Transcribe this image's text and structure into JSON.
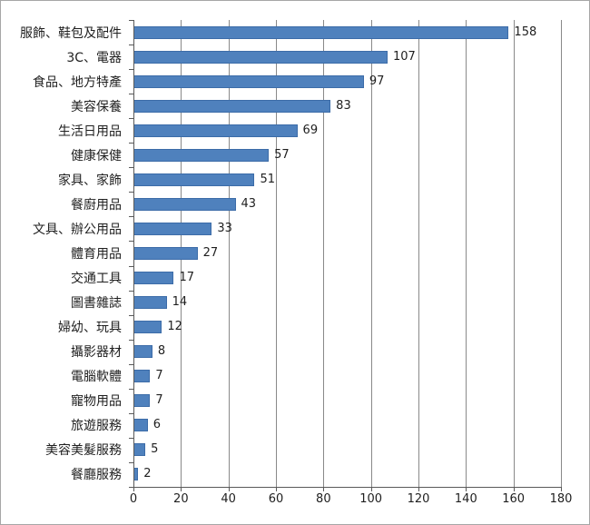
{
  "chart_data": {
    "type": "bar",
    "orientation": "horizontal",
    "title": "",
    "categories": [
      "服飾、鞋包及配件",
      "3C、電器",
      "食品、地方特產",
      "美容保養",
      "生活日用品",
      "健康保健",
      "家具、家飾",
      "餐廚用品",
      "文具、辦公用品",
      "體育用品",
      "交通工具",
      "圖書雜誌",
      "婦幼、玩具",
      "攝影器材",
      "電腦軟體",
      "寵物用品",
      "旅遊服務",
      "美容美髮服務",
      "餐廳服務"
    ],
    "values": [
      158,
      107,
      97,
      83,
      69,
      57,
      51,
      43,
      33,
      27,
      17,
      14,
      12,
      8,
      7,
      7,
      6,
      5,
      2
    ],
    "data_labels": [
      "158",
      "107",
      "97",
      "83",
      "69",
      "57",
      "51",
      "43",
      "33",
      "27",
      "17",
      "14",
      "12",
      "8",
      "7",
      "7",
      "6",
      "5",
      "2"
    ],
    "xlabel": "",
    "ylabel": "",
    "xlim": [
      0,
      180
    ],
    "x_ticks": [
      0,
      20,
      40,
      60,
      80,
      100,
      120,
      140,
      160,
      180
    ],
    "grid": "vertical",
    "legend": "none",
    "colors": {
      "bar_fill": "#4f81bd",
      "bar_border": "#3c6ca8",
      "gridline": "#898989",
      "axis": "#595959",
      "text": "#1f1f1f",
      "chart_border": "#a6a6a6",
      "background": "#ffffff"
    }
  }
}
